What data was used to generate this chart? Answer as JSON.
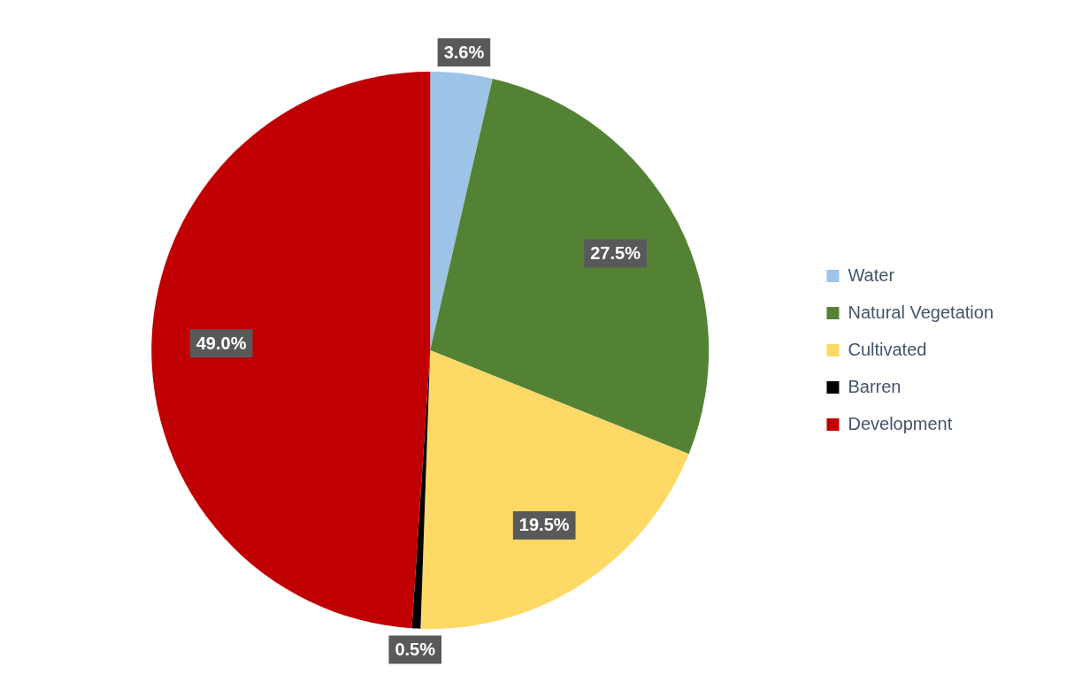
{
  "chart_data": {
    "type": "pie",
    "categories": [
      "Water",
      "Natural Vegetation",
      "Cultivated",
      "Barren",
      "Development"
    ],
    "values": [
      3.6,
      27.5,
      19.5,
      0.5,
      49.0
    ],
    "colors": [
      "#9dc3e6",
      "#548235",
      "#ffd966",
      "#000000",
      "#c00000"
    ],
    "value_labels": [
      "3.6%",
      "27.5%",
      "19.5%",
      "0.5%",
      "49.0%"
    ],
    "legend": "right"
  }
}
